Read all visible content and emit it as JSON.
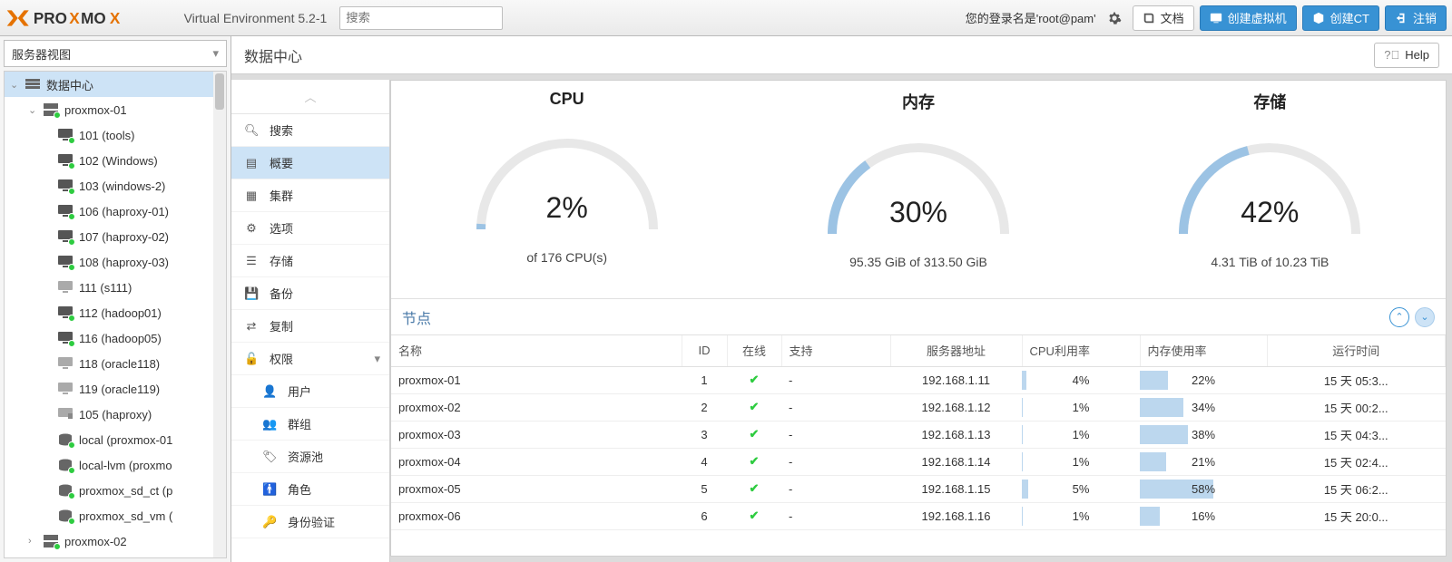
{
  "header": {
    "product": "Virtual Environment 5.2-1",
    "search_placeholder": "搜索",
    "login_prefix": "您的登录名是",
    "login_user": "'root@pam'",
    "docs": "文档",
    "create_vm": "创建虚拟机",
    "create_ct": "创建CT",
    "logout": "注销"
  },
  "left": {
    "view_label": "服务器视图",
    "datacenter": "数据中心",
    "node1": "proxmox-01",
    "items": [
      {
        "label": "101 (tools)",
        "type": "vm",
        "on": true
      },
      {
        "label": "102 (Windows)",
        "type": "vm",
        "on": true
      },
      {
        "label": "103 (windows-2)",
        "type": "vm",
        "on": true
      },
      {
        "label": "106 (haproxy-01)",
        "type": "vm",
        "on": true
      },
      {
        "label": "107 (haproxy-02)",
        "type": "vm",
        "on": true
      },
      {
        "label": "108 (haproxy-03)",
        "type": "vm",
        "on": true
      },
      {
        "label": "111 (s111)",
        "type": "vm",
        "on": false
      },
      {
        "label": "112 (hadoop01)",
        "type": "vm",
        "on": true
      },
      {
        "label": "116 (hadoop05)",
        "type": "vm",
        "on": true
      },
      {
        "label": "118 (oracle118)",
        "type": "vm",
        "on": false
      },
      {
        "label": "119 (oracle119)",
        "type": "vm",
        "on": false
      },
      {
        "label": "105 (haproxy)",
        "type": "ct",
        "on": false
      },
      {
        "label": "local (proxmox-01",
        "type": "stor",
        "on": true
      },
      {
        "label": "local-lvm (proxmo",
        "type": "stor",
        "on": true
      },
      {
        "label": "proxmox_sd_ct (p",
        "type": "stor",
        "on": true
      },
      {
        "label": "proxmox_sd_vm (",
        "type": "stor",
        "on": true
      }
    ],
    "node2": "proxmox-02"
  },
  "menu": {
    "search": "搜索",
    "summary": "概要",
    "cluster": "集群",
    "options": "选项",
    "storage": "存储",
    "backup": "备份",
    "replication": "复制",
    "permissions": "权限",
    "users": "用户",
    "groups": "群组",
    "pools": "资源池",
    "roles": "角色",
    "auth": "身份验证"
  },
  "main": {
    "title": "数据中心",
    "help": "Help",
    "gauges": {
      "cpu": {
        "title": "CPU",
        "pct": 2,
        "value": "2%",
        "sub": "of 176 CPU(s)",
        "color": "#9cc3e4"
      },
      "mem": {
        "title": "内存",
        "pct": 30,
        "value": "30%",
        "sub": "95.35 GiB of 313.50 GiB",
        "color": "#9cc3e4"
      },
      "stor": {
        "title": "存储",
        "pct": 42,
        "value": "42%",
        "sub": "4.31 TiB of 10.23 TiB",
        "color": "#9cc3e4"
      }
    },
    "nodes": {
      "title": "节点",
      "columns": {
        "name": "名称",
        "id": "ID",
        "online": "在线",
        "support": "支持",
        "addr": "服务器地址",
        "cpu": "CPU利用率",
        "mem": "内存使用率",
        "uptime": "运行时间"
      },
      "colwidths": {
        "name": "320px",
        "id": "50px",
        "online": "60px",
        "support": "120px",
        "addr": "145px",
        "cpu": "130px",
        "mem": "140px",
        "uptime": "auto"
      },
      "rows": [
        {
          "name": "proxmox-01",
          "id": "1",
          "online": true,
          "support": "-",
          "addr": "192.168.1.11",
          "cpu": 4,
          "mem": 22,
          "uptime": "15 天 05:3..."
        },
        {
          "name": "proxmox-02",
          "id": "2",
          "online": true,
          "support": "-",
          "addr": "192.168.1.12",
          "cpu": 1,
          "mem": 34,
          "uptime": "15 天 00:2..."
        },
        {
          "name": "proxmox-03",
          "id": "3",
          "online": true,
          "support": "-",
          "addr": "192.168.1.13",
          "cpu": 1,
          "mem": 38,
          "uptime": "15 天 04:3..."
        },
        {
          "name": "proxmox-04",
          "id": "4",
          "online": true,
          "support": "-",
          "addr": "192.168.1.14",
          "cpu": 1,
          "mem": 21,
          "uptime": "15 天 02:4..."
        },
        {
          "name": "proxmox-05",
          "id": "5",
          "online": true,
          "support": "-",
          "addr": "192.168.1.15",
          "cpu": 5,
          "mem": 58,
          "uptime": "15 天 06:2..."
        },
        {
          "name": "proxmox-06",
          "id": "6",
          "online": true,
          "support": "-",
          "addr": "192.168.1.16",
          "cpu": 1,
          "mem": 16,
          "uptime": "15 天 20:0..."
        }
      ]
    }
  },
  "colors": {
    "accent": "#3892d4",
    "selbg": "#cde3f6",
    "bar": "#bcd7ee",
    "arc_bg": "#e8e8e8"
  }
}
